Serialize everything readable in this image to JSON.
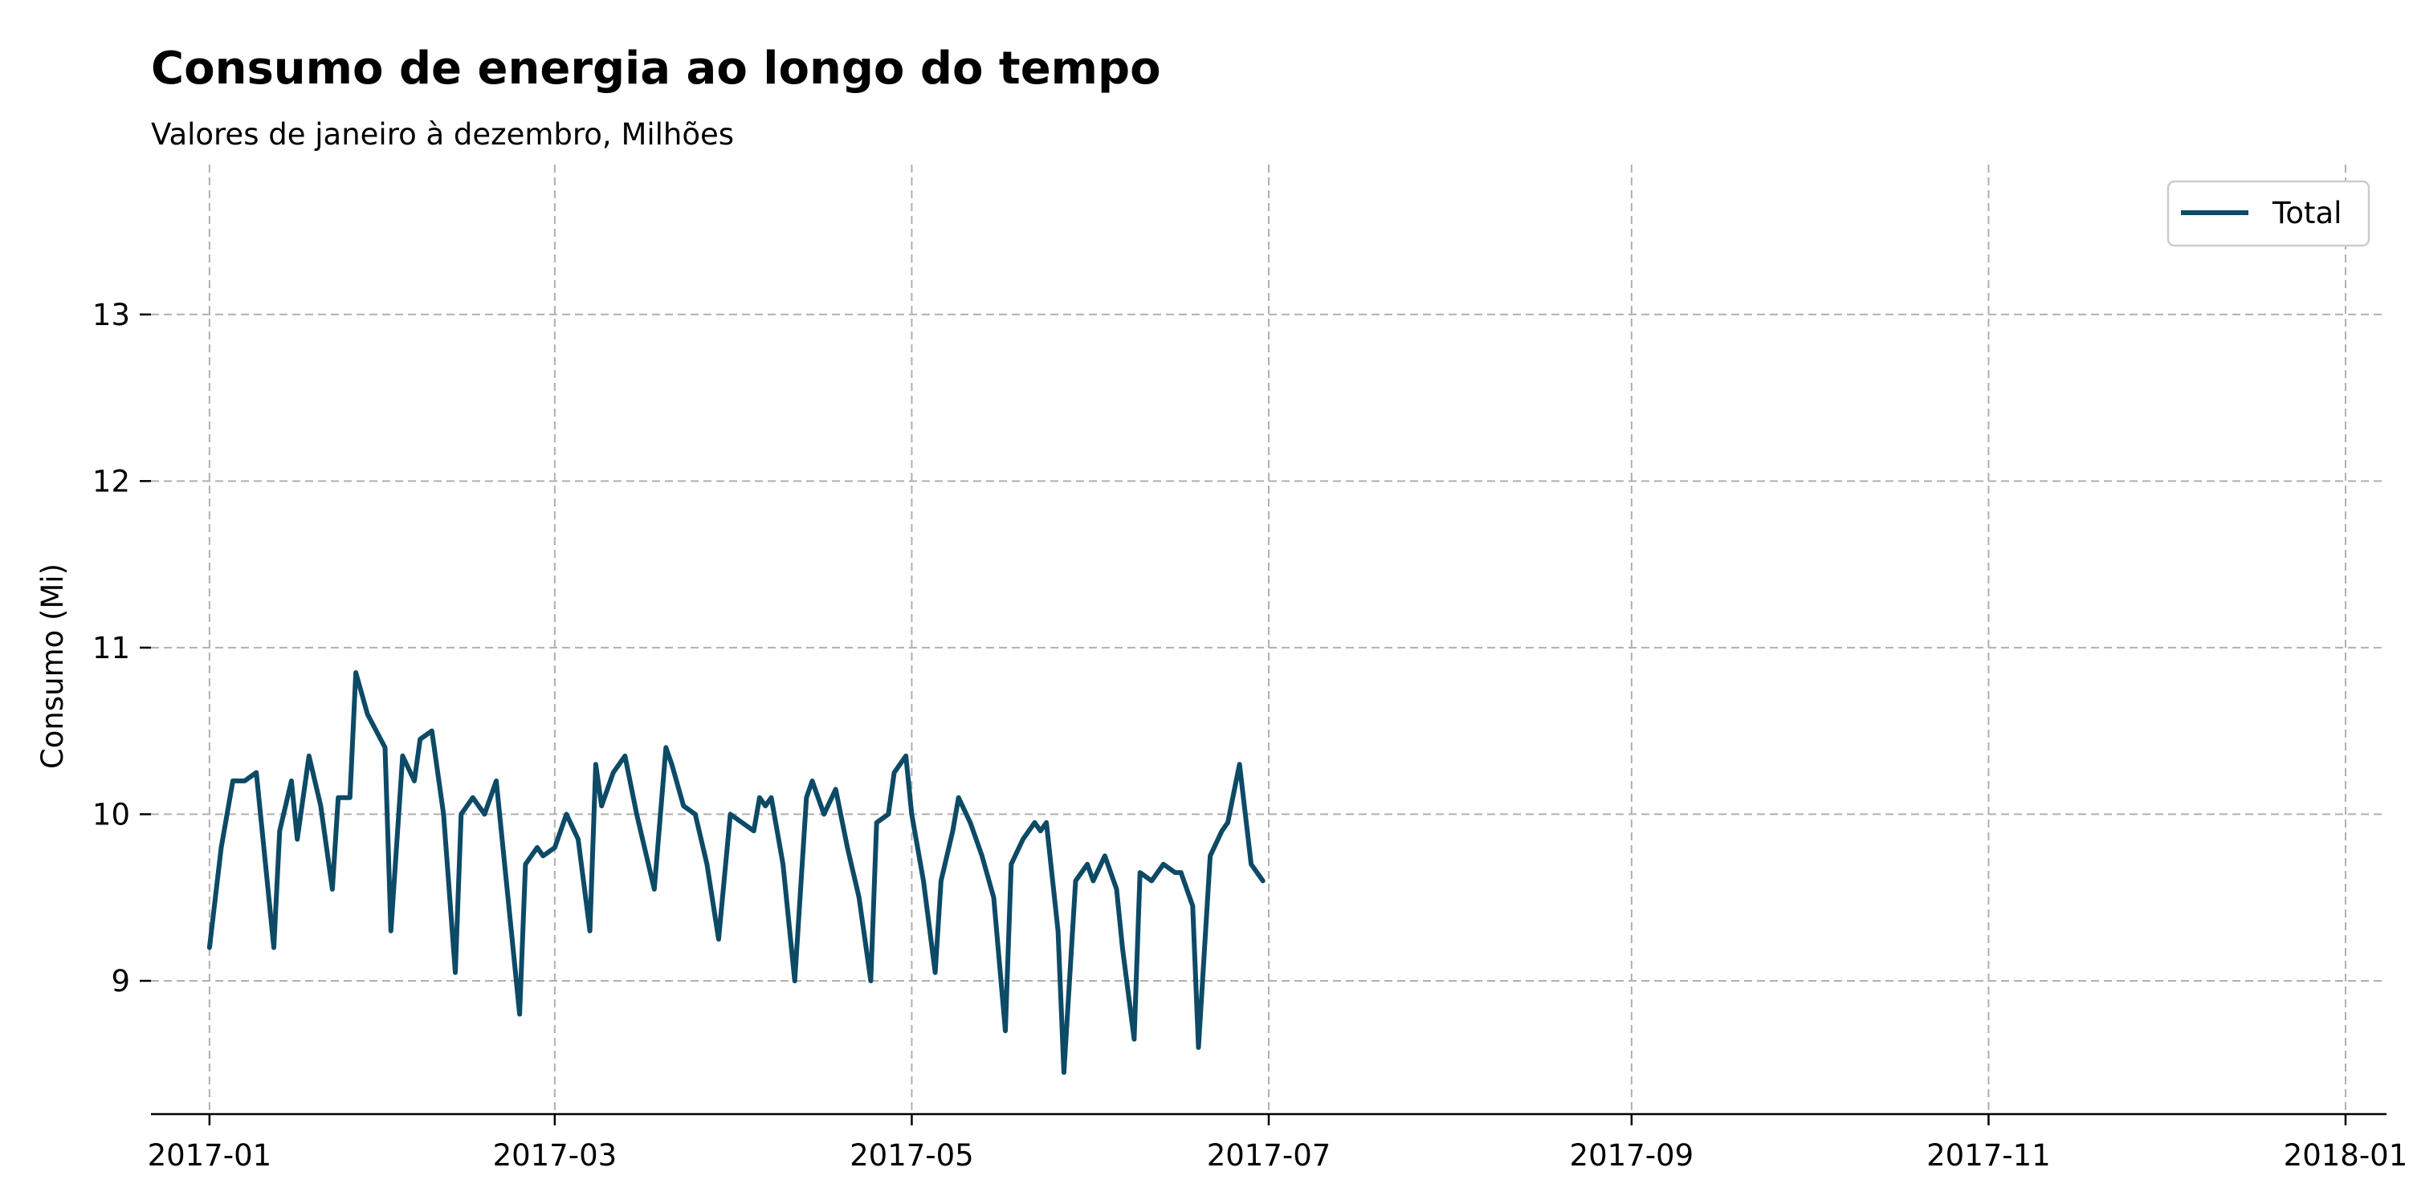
{
  "chart_data": {
    "type": "line",
    "title": "Consumo de energia ao longo do tempo",
    "subtitle": "Valores de janeiro à dezembro, Milhões",
    "xlabel": "",
    "ylabel": "Consumo (Mi)",
    "x_range": [
      "2016-12-22",
      "2018-01-08"
    ],
    "ylim": [
      8.2,
      13.9
    ],
    "x_ticks": [
      "2017-01",
      "2017-03",
      "2017-05",
      "2017-07",
      "2017-09",
      "2017-11",
      "2018-01"
    ],
    "y_ticks": [
      9,
      10,
      11,
      12,
      13
    ],
    "grid": true,
    "legend_position": "top-right",
    "line_color": "#0d4a66",
    "series": [
      {
        "name": "Total",
        "points": [
          [
            "2017-01-01",
            9.2
          ],
          [
            "2017-01-03",
            9.8
          ],
          [
            "2017-01-05",
            10.2
          ],
          [
            "2017-01-07",
            10.2
          ],
          [
            "2017-01-09",
            10.25
          ],
          [
            "2017-01-10",
            9.9
          ],
          [
            "2017-01-12",
            9.2
          ],
          [
            "2017-01-13",
            9.9
          ],
          [
            "2017-01-15",
            10.2
          ],
          [
            "2017-01-16",
            9.85
          ],
          [
            "2017-01-18",
            10.35
          ],
          [
            "2017-01-20",
            10.05
          ],
          [
            "2017-01-22",
            9.55
          ],
          [
            "2017-01-23",
            10.1
          ],
          [
            "2017-01-25",
            10.1
          ],
          [
            "2017-01-26",
            10.85
          ],
          [
            "2017-01-28",
            10.6
          ],
          [
            "2017-01-31",
            10.4
          ],
          [
            "2017-02-01",
            9.3
          ],
          [
            "2017-02-03",
            10.35
          ],
          [
            "2017-02-05",
            10.2
          ],
          [
            "2017-02-06",
            10.45
          ],
          [
            "2017-02-08",
            10.5
          ],
          [
            "2017-02-10",
            10.0
          ],
          [
            "2017-02-12",
            9.05
          ],
          [
            "2017-02-13",
            10.0
          ],
          [
            "2017-02-15",
            10.1
          ],
          [
            "2017-02-17",
            10.0
          ],
          [
            "2017-02-19",
            10.2
          ],
          [
            "2017-02-21",
            9.5
          ],
          [
            "2017-02-23",
            8.8
          ],
          [
            "2017-02-24",
            9.7
          ],
          [
            "2017-02-26",
            9.8
          ],
          [
            "2017-02-27",
            9.75
          ],
          [
            "2017-03-01",
            9.8
          ],
          [
            "2017-03-03",
            10.0
          ],
          [
            "2017-03-05",
            9.85
          ],
          [
            "2017-03-07",
            9.3
          ],
          [
            "2017-03-08",
            10.3
          ],
          [
            "2017-03-09",
            10.05
          ],
          [
            "2017-03-11",
            10.25
          ],
          [
            "2017-03-13",
            10.35
          ],
          [
            "2017-03-15",
            10.0
          ],
          [
            "2017-03-17",
            9.7
          ],
          [
            "2017-03-18",
            9.55
          ],
          [
            "2017-03-20",
            10.4
          ],
          [
            "2017-03-21",
            10.3
          ],
          [
            "2017-03-23",
            10.05
          ],
          [
            "2017-03-25",
            10.0
          ],
          [
            "2017-03-27",
            9.7
          ],
          [
            "2017-03-29",
            9.25
          ],
          [
            "2017-03-31",
            10.0
          ],
          [
            "2017-04-02",
            9.95
          ],
          [
            "2017-04-04",
            9.9
          ],
          [
            "2017-04-05",
            10.1
          ],
          [
            "2017-04-06",
            10.05
          ],
          [
            "2017-04-07",
            10.1
          ],
          [
            "2017-04-09",
            9.7
          ],
          [
            "2017-04-11",
            9.0
          ],
          [
            "2017-04-13",
            10.1
          ],
          [
            "2017-04-14",
            10.2
          ],
          [
            "2017-04-16",
            10.0
          ],
          [
            "2017-04-18",
            10.15
          ],
          [
            "2017-04-20",
            9.8
          ],
          [
            "2017-04-22",
            9.5
          ],
          [
            "2017-04-24",
            9.0
          ],
          [
            "2017-04-25",
            9.95
          ],
          [
            "2017-04-27",
            10.0
          ],
          [
            "2017-04-28",
            10.25
          ],
          [
            "2017-04-30",
            10.35
          ],
          [
            "2017-05-01",
            10.0
          ],
          [
            "2017-05-03",
            9.6
          ],
          [
            "2017-05-05",
            9.05
          ],
          [
            "2017-05-06",
            9.6
          ],
          [
            "2017-05-08",
            9.9
          ],
          [
            "2017-05-09",
            10.1
          ],
          [
            "2017-05-11",
            9.95
          ],
          [
            "2017-05-13",
            9.75
          ],
          [
            "2017-05-15",
            9.5
          ],
          [
            "2017-05-17",
            8.7
          ],
          [
            "2017-05-18",
            9.7
          ],
          [
            "2017-05-20",
            9.85
          ],
          [
            "2017-05-22",
            9.95
          ],
          [
            "2017-05-23",
            9.9
          ],
          [
            "2017-05-24",
            9.95
          ],
          [
            "2017-05-26",
            9.3
          ],
          [
            "2017-05-27",
            8.45
          ],
          [
            "2017-05-29",
            9.6
          ],
          [
            "2017-05-31",
            9.7
          ],
          [
            "2017-06-01",
            9.6
          ],
          [
            "2017-06-03",
            9.75
          ],
          [
            "2017-06-05",
            9.55
          ],
          [
            "2017-06-06",
            9.2
          ],
          [
            "2017-06-08",
            8.65
          ],
          [
            "2017-06-09",
            9.65
          ],
          [
            "2017-06-11",
            9.6
          ],
          [
            "2017-06-13",
            9.7
          ],
          [
            "2017-06-15",
            9.65
          ],
          [
            "2017-06-16",
            9.65
          ],
          [
            "2017-06-18",
            9.45
          ],
          [
            "2017-06-19",
            8.6
          ],
          [
            "2017-06-21",
            9.75
          ],
          [
            "2017-06-23",
            9.9
          ],
          [
            "2017-06-24",
            9.95
          ],
          [
            "2017-06-26",
            10.3
          ],
          [
            "2017-06-28",
            9.7
          ],
          [
            "2017-06-30",
            9.6
          ]
        ]
      }
    ]
  },
  "legend": {
    "label": "Total"
  }
}
